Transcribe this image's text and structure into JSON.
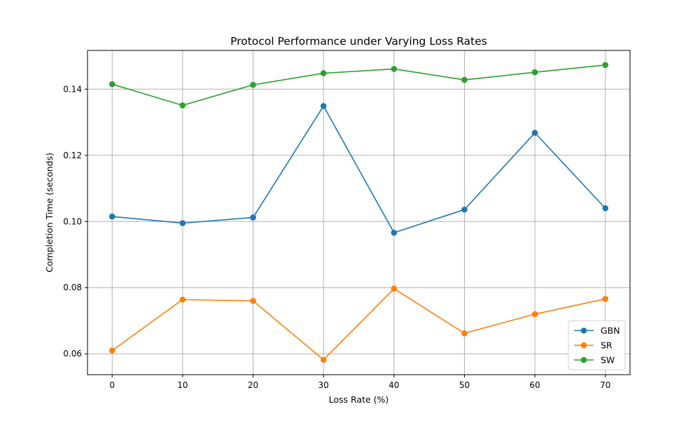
{
  "chart_data": {
    "type": "line",
    "title": "Protocol Performance under Varying Loss Rates",
    "xlabel": "Loss Rate (%)",
    "ylabel": "Completion Time (seconds)",
    "x": [
      0,
      10,
      20,
      30,
      40,
      50,
      60,
      70
    ],
    "x_ticks": [
      "0",
      "10",
      "20",
      "30",
      "40",
      "50",
      "60",
      "70"
    ],
    "y_ticks": [
      "0.06",
      "0.08",
      "0.10",
      "0.12",
      "0.14"
    ],
    "xlim": [
      -3.5,
      73.5
    ],
    "ylim": [
      0.0537,
      0.1517
    ],
    "grid": true,
    "legend_position": "lower-right",
    "series": [
      {
        "name": "GBN",
        "color": "#1f77b4",
        "values": [
          0.1015,
          0.0995,
          0.1012,
          0.1349,
          0.0966,
          0.1036,
          0.1268,
          0.104
        ]
      },
      {
        "name": "SR",
        "color": "#ff7f0e",
        "values": [
          0.061,
          0.0764,
          0.076,
          0.0582,
          0.0797,
          0.0662,
          0.072,
          0.0766
        ]
      },
      {
        "name": "SW",
        "color": "#2ca02c",
        "values": [
          0.1415,
          0.1351,
          0.1413,
          0.1448,
          0.1461,
          0.1428,
          0.1451,
          0.1473
        ]
      }
    ]
  }
}
